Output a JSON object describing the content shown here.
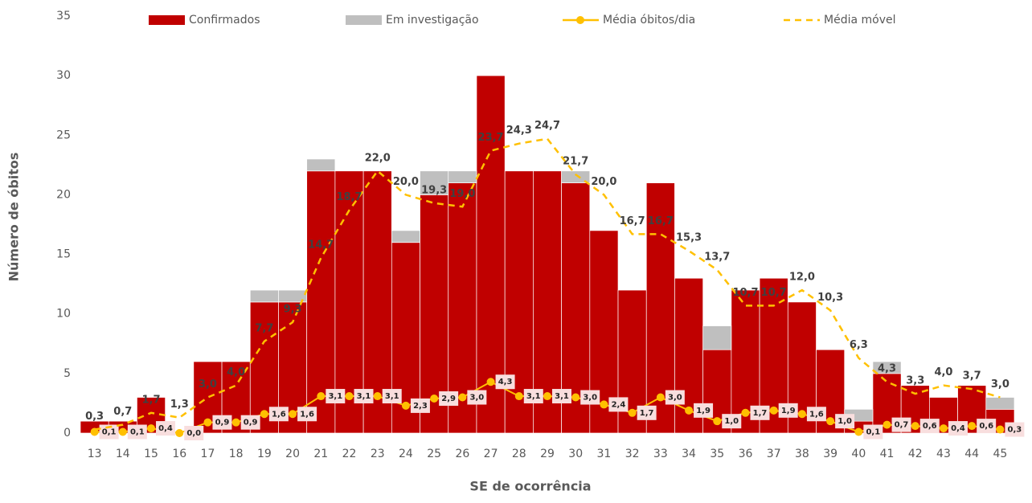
{
  "chart_data": {
    "type": "bar",
    "y_label": "Número de óbitos",
    "x_label": "SE de ocorrência",
    "categories": [
      "13",
      "14",
      "15",
      "16",
      "17",
      "18",
      "19",
      "20",
      "21",
      "22",
      "23",
      "24",
      "25",
      "26",
      "27",
      "28",
      "29",
      "30",
      "31",
      "32",
      "33",
      "34",
      "35",
      "36",
      "37",
      "38",
      "39",
      "40",
      "41",
      "42",
      "43",
      "44",
      "45"
    ],
    "ylim": [
      0,
      35
    ],
    "yticks": [
      0,
      5,
      10,
      15,
      20,
      25,
      30,
      35
    ],
    "grid": false,
    "legend": "top",
    "series": [
      {
        "name": "Confirmados",
        "color": "#c00000",
        "kind": "bar",
        "values": [
          1,
          1,
          3,
          0,
          6,
          6,
          11,
          11,
          22,
          22,
          22,
          16,
          20,
          21,
          30,
          22,
          22,
          21,
          17,
          12,
          21,
          13,
          7,
          12,
          13,
          11,
          7,
          1,
          5,
          4,
          3,
          4,
          2
        ]
      },
      {
        "name": "Em investigação",
        "color": "#bfbfbf",
        "kind": "bar",
        "values": [
          0,
          0,
          0,
          0,
          0,
          0,
          1,
          1,
          1,
          0,
          0,
          1,
          2,
          1,
          0,
          0,
          0,
          1,
          0,
          0,
          0,
          0,
          2,
          0,
          0,
          0,
          0,
          1,
          1,
          0,
          0,
          0,
          1
        ]
      },
      {
        "name": "Média óbitos/dia",
        "color": "#ffc000",
        "kind": "line",
        "values": [
          0.1,
          0.1,
          0.4,
          0.0,
          0.9,
          0.9,
          1.6,
          1.6,
          3.1,
          3.1,
          3.1,
          2.3,
          2.9,
          3.0,
          4.3,
          3.1,
          3.1,
          3.0,
          2.4,
          1.7,
          3.0,
          1.9,
          1.0,
          1.7,
          1.9,
          1.6,
          1.0,
          0.1,
          0.7,
          0.6,
          0.4,
          0.6,
          0.3
        ],
        "value_labels": [
          "0,1",
          "0,1",
          "0,4",
          "0,0",
          "0,9",
          "0,9",
          "1,6",
          "1,6",
          "3,1",
          "3,1",
          "3,1",
          "2,3",
          "2,9",
          "3,0",
          "4,3",
          "3,1",
          "3,1",
          "3,0",
          "2,4",
          "1,7",
          "3,0",
          "1,9",
          "1,0",
          "1,7",
          "1,9",
          "1,6",
          "1,0",
          "0,1",
          "0,7",
          "0,6",
          "0,4",
          "0,6",
          "0,3"
        ]
      },
      {
        "name": "Média móvel",
        "color": "#ffc000",
        "kind": "dashed",
        "values": [
          0.3,
          0.7,
          1.7,
          1.3,
          3.0,
          4.0,
          7.7,
          9.3,
          14.7,
          18.7,
          22.0,
          20.0,
          19.3,
          19.0,
          23.7,
          24.3,
          24.7,
          21.7,
          20.0,
          16.7,
          16.7,
          15.3,
          13.7,
          10.7,
          10.7,
          12.0,
          10.3,
          6.3,
          4.3,
          3.3,
          4.0,
          3.7,
          3.0
        ],
        "value_labels": [
          "0,3",
          "0,7",
          "1,7",
          "1,3",
          "3,0",
          "4,0",
          "7,7",
          "9,3",
          "14,7",
          "18,7",
          "22,0",
          "20,0",
          "19,3",
          "19,0",
          "23,7",
          "24,3",
          "24,7",
          "21,7",
          "20,0",
          "16,7",
          "16,7",
          "15,3",
          "13,7",
          "10,7",
          "10,7",
          "12,0",
          "10,3",
          "6,3",
          "4,3",
          "3,3",
          "4,0",
          "3,7",
          "3,0"
        ]
      }
    ]
  }
}
